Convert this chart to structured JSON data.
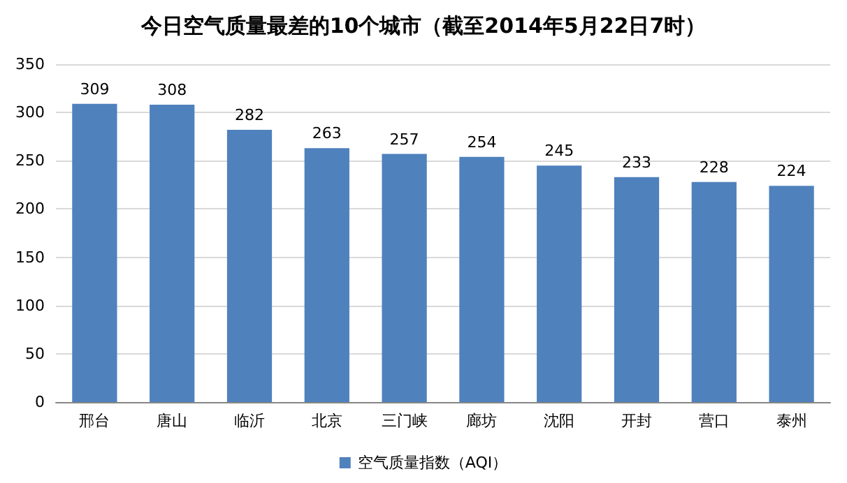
{
  "chart_data": {
    "type": "bar",
    "title": "今日空气质量最差的10个城市（截至2014年5月22日7时）",
    "categories": [
      "邢台",
      "唐山",
      "临沂",
      "北京",
      "三门峡",
      "廊坊",
      "沈阳",
      "开封",
      "营口",
      "泰州"
    ],
    "series": [
      {
        "name": "空气质量指数（AQI）",
        "color": "#4f81bd",
        "values": [
          309,
          308,
          282,
          263,
          257,
          254,
          245,
          233,
          228,
          224
        ]
      }
    ],
    "ylim": [
      0,
      350
    ],
    "yticks": [
      0,
      50,
      100,
      150,
      200,
      250,
      300,
      350
    ],
    "grid": "y",
    "legend": "bottom",
    "data_labels": true
  }
}
